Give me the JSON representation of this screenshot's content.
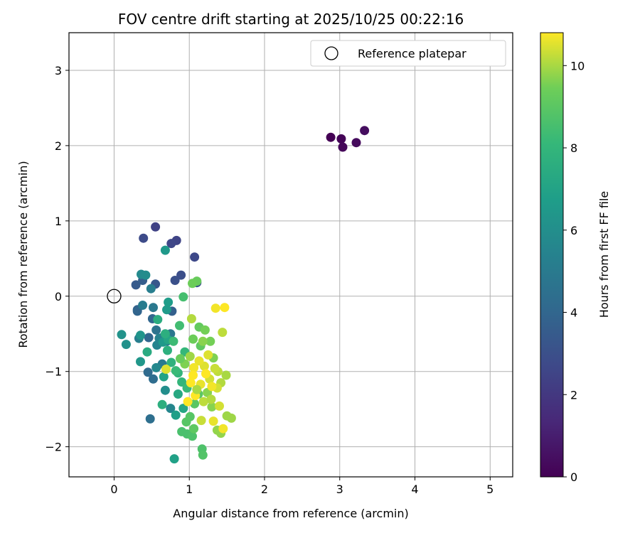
{
  "chart_data": {
    "type": "scatter",
    "title": "FOV centre drift starting at 2025/10/25 00:22:16",
    "xlabel": "Angular distance from reference (arcmin)",
    "ylabel": "Rotation from reference (arcmin)",
    "xlim": [
      -0.6,
      5.3
    ],
    "ylim": [
      -2.4,
      3.5
    ],
    "xticks": [
      0,
      1,
      2,
      3,
      4,
      5
    ],
    "yticks": [
      -2,
      -1,
      0,
      1,
      2,
      3
    ],
    "grid": true,
    "legend": {
      "position": "top-right",
      "entries": [
        "Reference platepar"
      ]
    },
    "reference_point": {
      "x": 0,
      "y": 0,
      "label": "Reference platepar"
    },
    "colorbar": {
      "label": "Hours from first FF file",
      "range": [
        0,
        10.8
      ],
      "ticks": [
        0,
        2,
        4,
        6,
        8,
        10
      ],
      "colormap": "viridis"
    },
    "series": [
      {
        "points": [
          [
            2.88,
            2.11,
            0.0
          ],
          [
            3.02,
            2.09,
            0.1
          ],
          [
            3.04,
            1.98,
            0.2
          ],
          [
            3.22,
            2.04,
            0.3
          ],
          [
            3.33,
            2.2,
            0.4
          ],
          [
            0.55,
            0.92,
            2.4
          ],
          [
            0.83,
            0.74,
            2.5
          ],
          [
            0.76,
            0.7,
            2.6
          ],
          [
            1.07,
            0.52,
            2.7
          ],
          [
            0.39,
            0.77,
            2.8
          ],
          [
            0.89,
            0.28,
            2.9
          ],
          [
            0.81,
            0.21,
            3.0
          ],
          [
            1.1,
            0.18,
            3.1
          ],
          [
            0.55,
            0.16,
            3.3
          ],
          [
            0.29,
            0.15,
            3.5
          ],
          [
            0.38,
            0.21,
            3.6
          ],
          [
            0.77,
            -0.2,
            3.7
          ],
          [
            0.31,
            -0.18,
            3.8
          ],
          [
            0.31,
            -0.2,
            3.9
          ],
          [
            0.51,
            -0.3,
            4.0
          ],
          [
            0.46,
            -0.55,
            4.0
          ],
          [
            0.64,
            -0.55,
            4.1
          ],
          [
            0.45,
            -1.01,
            4.2
          ],
          [
            0.52,
            -1.1,
            4.3
          ],
          [
            0.48,
            -1.63,
            4.4
          ],
          [
            0.56,
            -0.45,
            4.6
          ],
          [
            0.7,
            -0.6,
            4.6
          ],
          [
            0.75,
            -0.5,
            4.8
          ],
          [
            0.52,
            -0.15,
            4.9
          ],
          [
            0.64,
            -0.9,
            5.0
          ],
          [
            0.38,
            -0.12,
            5.1
          ],
          [
            0.49,
            0.1,
            5.2
          ],
          [
            0.33,
            -0.56,
            5.2
          ],
          [
            0.6,
            -0.56,
            5.4
          ],
          [
            0.57,
            -0.65,
            5.5
          ],
          [
            0.75,
            -1.49,
            5.6
          ],
          [
            0.56,
            -0.95,
            5.7
          ],
          [
            0.36,
            0.29,
            5.8
          ],
          [
            0.42,
            0.28,
            5.9
          ],
          [
            0.68,
            -1.25,
            6.0
          ],
          [
            0.16,
            -0.64,
            6.1
          ],
          [
            0.1,
            -0.51,
            6.2
          ],
          [
            0.35,
            -0.52,
            6.3
          ],
          [
            0.35,
            -0.87,
            6.4
          ],
          [
            0.65,
            -0.61,
            6.5
          ],
          [
            0.68,
            0.61,
            6.5
          ],
          [
            0.7,
            -0.18,
            6.6
          ],
          [
            0.72,
            -0.08,
            6.7
          ],
          [
            0.82,
            -1.58,
            6.8
          ],
          [
            0.8,
            -2.16,
            6.9
          ],
          [
            0.66,
            -1.07,
            7.0
          ],
          [
            0.72,
            -0.58,
            7.1
          ],
          [
            0.92,
            -1.49,
            7.2
          ],
          [
            0.85,
            -1.3,
            7.3
          ],
          [
            0.44,
            -0.74,
            7.4
          ],
          [
            0.58,
            -0.31,
            7.5
          ],
          [
            0.64,
            -1.44,
            7.6
          ],
          [
            0.68,
            -0.5,
            7.6
          ],
          [
            0.71,
            -0.72,
            7.7
          ],
          [
            0.76,
            -0.88,
            7.8
          ],
          [
            0.85,
            -1.02,
            7.9
          ],
          [
            0.9,
            -1.14,
            8.0
          ],
          [
            0.94,
            -0.74,
            8.1
          ],
          [
            0.97,
            -1.22,
            8.2
          ],
          [
            0.82,
            -0.99,
            8.2
          ],
          [
            0.79,
            -0.6,
            8.3
          ],
          [
            0.87,
            -0.39,
            8.4
          ],
          [
            0.92,
            -0.01,
            8.5
          ],
          [
            0.9,
            -1.8,
            8.6
          ],
          [
            0.97,
            -1.83,
            8.6
          ],
          [
            1.04,
            -1.86,
            8.7
          ],
          [
            1.17,
            -2.03,
            8.7
          ],
          [
            1.18,
            -2.11,
            8.8
          ],
          [
            0.96,
            -1.67,
            8.9
          ],
          [
            1.01,
            -1.6,
            8.9
          ],
          [
            1.07,
            -1.43,
            9.0
          ],
          [
            1.12,
            -1.3,
            9.0
          ],
          [
            1.06,
            -1.76,
            9.1
          ],
          [
            1.15,
            -0.66,
            9.1
          ],
          [
            1.13,
            -0.41,
            9.2
          ],
          [
            1.1,
            0.2,
            9.3
          ],
          [
            1.04,
            0.17,
            9.4
          ],
          [
            1.05,
            -0.57,
            9.4
          ],
          [
            1.21,
            -0.45,
            9.5
          ],
          [
            1.28,
            -0.6,
            9.5
          ],
          [
            1.32,
            -0.82,
            9.6
          ],
          [
            1.24,
            -1.28,
            9.7
          ],
          [
            1.3,
            -1.47,
            9.7
          ],
          [
            1.37,
            -1.78,
            9.8
          ],
          [
            1.42,
            -1.82,
            9.8
          ],
          [
            1.5,
            -1.59,
            9.9
          ],
          [
            1.56,
            -1.62,
            9.9
          ],
          [
            1.49,
            -1.05,
            10.0
          ],
          [
            1.42,
            -1.15,
            10.1
          ],
          [
            1.38,
            -1.0,
            10.2
          ],
          [
            1.34,
            -0.96,
            10.3
          ],
          [
            1.27,
            -1.1,
            10.4
          ],
          [
            1.2,
            -0.93,
            10.5
          ],
          [
            1.13,
            -0.86,
            10.6
          ],
          [
            1.06,
            -0.95,
            10.7
          ],
          [
            1.02,
            -1.15,
            10.8
          ],
          [
            1.08,
            -1.32,
            10.8
          ],
          [
            1.15,
            -1.17,
            10.6
          ],
          [
            1.25,
            -0.78,
            10.5
          ],
          [
            1.37,
            -1.22,
            10.4
          ],
          [
            1.44,
            -0.48,
            10.2
          ],
          [
            1.47,
            -0.15,
            10.8
          ],
          [
            1.35,
            -0.16,
            10.7
          ],
          [
            1.03,
            -0.3,
            10.1
          ],
          [
            0.69,
            -0.97,
            10.5
          ],
          [
            1.16,
            -1.65,
            10.3
          ],
          [
            1.32,
            -1.66,
            10.6
          ],
          [
            1.45,
            -1.76,
            10.7
          ],
          [
            1.4,
            -1.46,
            10.4
          ],
          [
            1.19,
            -1.4,
            10.2
          ],
          [
            0.98,
            -1.4,
            10.9
          ],
          [
            1.05,
            -1.05,
            10.9
          ],
          [
            1.22,
            -1.03,
            10.8
          ],
          [
            1.3,
            -1.2,
            10.7
          ],
          [
            0.94,
            -0.9,
            9.6
          ],
          [
            0.88,
            -0.83,
            9.3
          ],
          [
            1.18,
            -0.6,
            9.7
          ],
          [
            1.01,
            -0.8,
            9.9
          ],
          [
            1.1,
            -1.24,
            10.0
          ],
          [
            1.29,
            -1.37,
            10.1
          ]
        ]
      }
    ]
  }
}
